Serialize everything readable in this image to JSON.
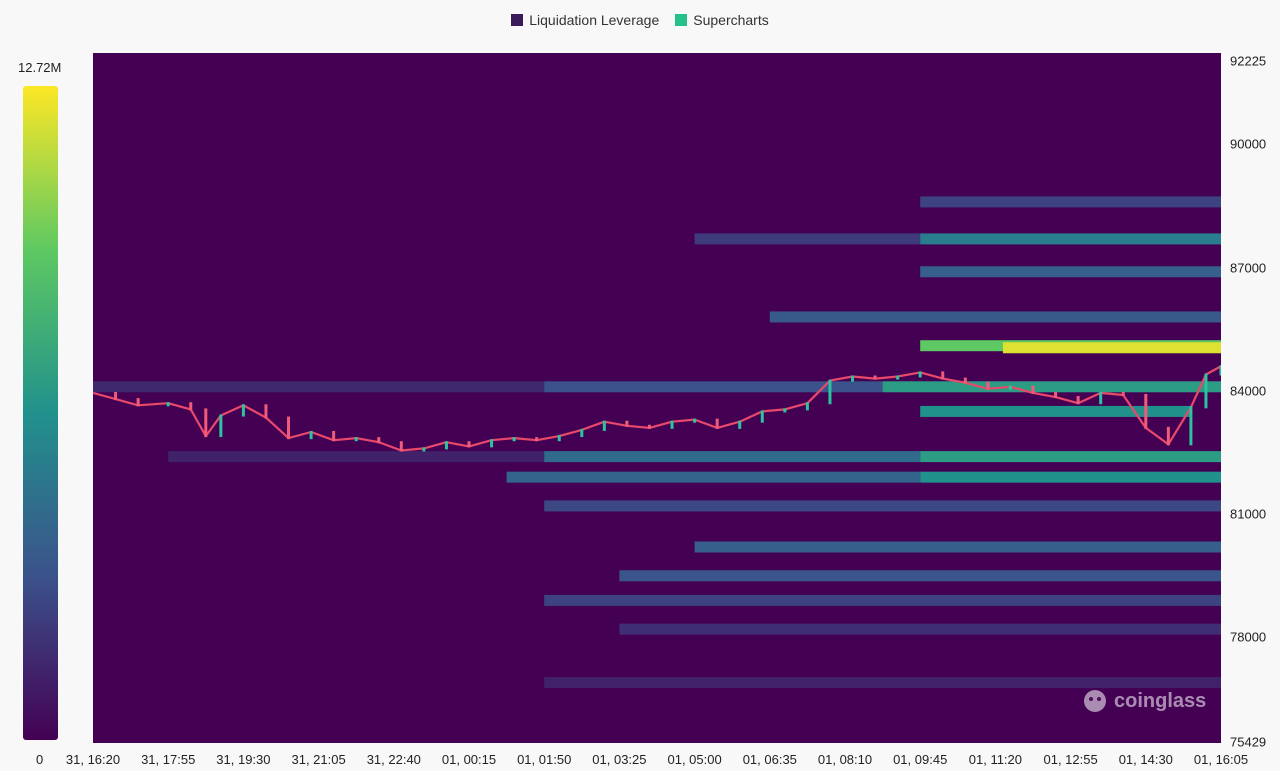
{
  "legend": [
    {
      "label": "Liquidation Leverage",
      "color": "#3b1a5a"
    },
    {
      "label": "Supercharts",
      "color": "#26c08a"
    }
  ],
  "colorbar": {
    "max_label": "12.72M",
    "min_label": "0"
  },
  "watermark": {
    "text": "coinglass",
    "icon": "coinglass-logo-icon"
  },
  "chart_data": {
    "type": "heatmap",
    "title": "",
    "colorscale": [
      "#440154",
      "#3b528b",
      "#21918c",
      "#5ec962",
      "#fde725"
    ],
    "value_range": [
      0,
      12.72
    ],
    "value_unit": "M",
    "x_ticks": [
      "31, 16:20",
      "31, 17:55",
      "31, 19:30",
      "31, 21:05",
      "31, 22:40",
      "01, 00:15",
      "01, 01:50",
      "01, 03:25",
      "01, 05:00",
      "01, 06:35",
      "01, 08:10",
      "01, 09:45",
      "01, 11:20",
      "01, 12:55",
      "01, 14:30",
      "01, 16:05"
    ],
    "y_ticks": [
      "92225",
      "90000",
      "87000",
      "84000",
      "81000",
      "78000",
      "75429"
    ],
    "y_range": [
      75429,
      92225
    ],
    "bands": [
      {
        "price": 84100,
        "start": 0,
        "end": 6,
        "intensity": 0.12
      },
      {
        "price": 84100,
        "start": 6,
        "end": 10.5,
        "intensity": 0.25
      },
      {
        "price": 84100,
        "start": 10.5,
        "end": 15.2,
        "intensity": 0.55
      },
      {
        "price": 85100,
        "start": 11,
        "end": 15.2,
        "intensity": 0.75
      },
      {
        "price": 85050,
        "start": 12.1,
        "end": 15.2,
        "intensity": 0.95
      },
      {
        "price": 85050,
        "start": 15.2,
        "end": 15.6,
        "intensity": 1.0
      },
      {
        "price": 87700,
        "start": 8,
        "end": 11,
        "intensity": 0.18
      },
      {
        "price": 87700,
        "start": 11,
        "end": 15.6,
        "intensity": 0.42
      },
      {
        "price": 86900,
        "start": 11,
        "end": 15.6,
        "intensity": 0.3
      },
      {
        "price": 88600,
        "start": 11,
        "end": 15.6,
        "intensity": 0.2
      },
      {
        "price": 85800,
        "start": 9,
        "end": 15.6,
        "intensity": 0.28
      },
      {
        "price": 83500,
        "start": 11,
        "end": 14.6,
        "intensity": 0.5
      },
      {
        "price": 82400,
        "start": 1,
        "end": 6,
        "intensity": 0.1
      },
      {
        "price": 82400,
        "start": 6,
        "end": 11,
        "intensity": 0.35
      },
      {
        "price": 82400,
        "start": 11,
        "end": 15.6,
        "intensity": 0.55
      },
      {
        "price": 81900,
        "start": 5.5,
        "end": 11,
        "intensity": 0.32
      },
      {
        "price": 81900,
        "start": 11,
        "end": 15.6,
        "intensity": 0.5
      },
      {
        "price": 81200,
        "start": 6,
        "end": 15.6,
        "intensity": 0.22
      },
      {
        "price": 80200,
        "start": 8,
        "end": 15.6,
        "intensity": 0.3
      },
      {
        "price": 79500,
        "start": 7,
        "end": 15.6,
        "intensity": 0.26
      },
      {
        "price": 78900,
        "start": 6,
        "end": 15.6,
        "intensity": 0.2
      },
      {
        "price": 78200,
        "start": 7,
        "end": 15.6,
        "intensity": 0.14
      },
      {
        "price": 76900,
        "start": 6,
        "end": 15.6,
        "intensity": 0.1
      }
    ],
    "price_line": {
      "time": [
        0,
        0.3,
        0.6,
        1,
        1.3,
        1.5,
        1.7,
        2,
        2.3,
        2.6,
        2.9,
        3.2,
        3.5,
        3.8,
        4.1,
        4.4,
        4.7,
        5,
        5.3,
        5.6,
        5.9,
        6.2,
        6.5,
        6.8,
        7.1,
        7.4,
        7.7,
        8,
        8.3,
        8.6,
        8.9,
        9.2,
        9.5,
        9.8,
        10.1,
        10.4,
        10.7,
        11,
        11.3,
        11.6,
        11.9,
        12.2,
        12.5,
        12.8,
        13.1,
        13.4,
        13.7,
        14,
        14.3,
        14.6,
        14.8,
        15,
        15.2,
        15.4,
        15.6
      ],
      "price": [
        83950,
        83800,
        83650,
        83700,
        83550,
        82900,
        83400,
        83650,
        83350,
        82850,
        83000,
        82800,
        82850,
        82750,
        82550,
        82600,
        82750,
        82650,
        82800,
        82850,
        82800,
        82900,
        83050,
        83250,
        83150,
        83100,
        83250,
        83300,
        83100,
        83250,
        83500,
        83550,
        83700,
        84250,
        84350,
        84300,
        84350,
        84450,
        84300,
        84200,
        84050,
        84100,
        83950,
        83850,
        83700,
        83950,
        83900,
        83100,
        82700,
        83600,
        84400,
        84600,
        84900,
        85200,
        85300
      ]
    }
  }
}
